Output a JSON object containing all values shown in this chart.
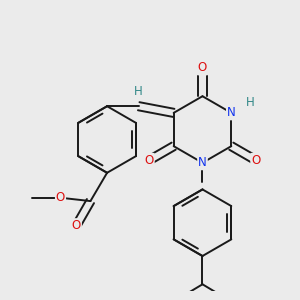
{
  "bg_color": "#ebebeb",
  "bond_color": "#1a1a1a",
  "o_color": "#dd1111",
  "n_color": "#1133ee",
  "h_color": "#338888",
  "font_size_atom": 8.5,
  "line_width": 1.4,
  "figsize": [
    3.0,
    3.0
  ],
  "dpi": 100,
  "xlim": [
    -0.1,
    1.05
  ],
  "ylim": [
    -0.05,
    1.05
  ]
}
